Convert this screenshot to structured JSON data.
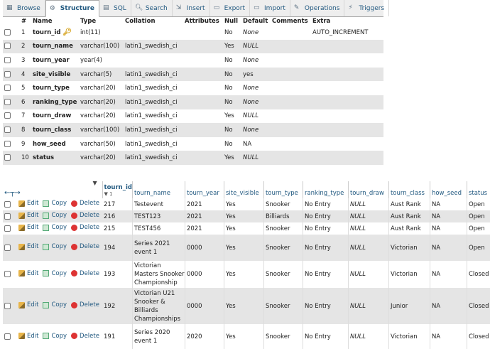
{
  "tabs": [
    {
      "label": "Browse",
      "icon": "browse-icon"
    },
    {
      "label": "Structure",
      "icon": "structure-icon",
      "active": true
    },
    {
      "label": "SQL",
      "icon": "sql-icon"
    },
    {
      "label": "Search",
      "icon": "search-icon"
    },
    {
      "label": "Insert",
      "icon": "insert-icon"
    },
    {
      "label": "Export",
      "icon": "export-icon"
    },
    {
      "label": "Import",
      "icon": "import-icon"
    },
    {
      "label": "Operations",
      "icon": "operations-icon"
    },
    {
      "label": "Triggers",
      "icon": "triggers-icon"
    }
  ],
  "structure": {
    "headers": {
      "num": "#",
      "name": "Name",
      "type": "Type",
      "collation": "Collation",
      "attributes": "Attributes",
      "null": "Null",
      "default": "Default",
      "comments": "Comments",
      "extra": "Extra"
    },
    "rows": [
      {
        "num": "1",
        "name": "tourn_id",
        "type": "int(11)",
        "collation": "",
        "attributes": "",
        "null": "No",
        "default": "None",
        "comments": "",
        "extra": "AUTO_INCREMENT"
      },
      {
        "num": "2",
        "name": "tourn_name",
        "type": "varchar(100)",
        "collation": "latin1_swedish_ci",
        "attributes": "",
        "null": "Yes",
        "default": "NULL",
        "comments": "",
        "extra": ""
      },
      {
        "num": "3",
        "name": "tourn_year",
        "type": "year(4)",
        "collation": "",
        "attributes": "",
        "null": "No",
        "default": "None",
        "comments": "",
        "extra": ""
      },
      {
        "num": "4",
        "name": "site_visible",
        "type": "varchar(5)",
        "collation": "latin1_swedish_ci",
        "attributes": "",
        "null": "No",
        "default": "yes",
        "comments": "",
        "extra": ""
      },
      {
        "num": "5",
        "name": "tourn_type",
        "type": "varchar(20)",
        "collation": "latin1_swedish_ci",
        "attributes": "",
        "null": "No",
        "default": "None",
        "comments": "",
        "extra": ""
      },
      {
        "num": "6",
        "name": "ranking_type",
        "type": "varchar(20)",
        "collation": "latin1_swedish_ci",
        "attributes": "",
        "null": "No",
        "default": "None",
        "comments": "",
        "extra": ""
      },
      {
        "num": "7",
        "name": "tourn_draw",
        "type": "varchar(20)",
        "collation": "latin1_swedish_ci",
        "attributes": "",
        "null": "Yes",
        "default": "NULL",
        "comments": "",
        "extra": ""
      },
      {
        "num": "8",
        "name": "tourn_class",
        "type": "varchar(100)",
        "collation": "latin1_swedish_ci",
        "attributes": "",
        "null": "No",
        "default": "None",
        "comments": "",
        "extra": ""
      },
      {
        "num": "9",
        "name": "how_seed",
        "type": "varchar(50)",
        "collation": "latin1_swedish_ci",
        "attributes": "",
        "null": "No",
        "default": "NA",
        "comments": "",
        "extra": ""
      },
      {
        "num": "10",
        "name": "status",
        "type": "varchar(20)",
        "collation": "latin1_swedish_ci",
        "attributes": "",
        "null": "Yes",
        "default": "NULL",
        "comments": "",
        "extra": ""
      }
    ]
  },
  "browse": {
    "sort_column": "tourn_id",
    "sort_indicator": "▼ 1",
    "headers": [
      "tourn_name",
      "tourn_year",
      "site_visible",
      "tourn_type",
      "ranking_type",
      "tourn_draw",
      "tourn_class",
      "how_seed",
      "status"
    ],
    "actions": {
      "edit": "Edit",
      "copy": "Copy",
      "delete": "Delete"
    },
    "rows": [
      {
        "id": "217",
        "tourn_name": "Testevent",
        "tourn_year": "2021",
        "site_visible": "Yes",
        "tourn_type": "Snooker",
        "ranking_type": "No Entry",
        "tourn_draw": "NULL",
        "tourn_class": "Aust Rank",
        "how_seed": "NA",
        "status": "Open",
        "h": 17
      },
      {
        "id": "216",
        "tourn_name": "TEST123",
        "tourn_year": "2021",
        "site_visible": "Yes",
        "tourn_type": "Billiards",
        "ranking_type": "No Entry",
        "tourn_draw": "NULL",
        "tourn_class": "Aust Rank",
        "how_seed": "NA",
        "status": "Open",
        "h": 17
      },
      {
        "id": "215",
        "tourn_name": "TEST456",
        "tourn_year": "2021",
        "site_visible": "Yes",
        "tourn_type": "Snooker",
        "ranking_type": "No Entry",
        "tourn_draw": "NULL",
        "tourn_class": "Aust Rank",
        "how_seed": "NA",
        "status": "Open",
        "h": 17
      },
      {
        "id": "194",
        "tourn_name": "Series 2021 event 1",
        "tourn_year": "0000",
        "site_visible": "Yes",
        "tourn_type": "Snooker",
        "ranking_type": "No Entry",
        "tourn_draw": "NULL",
        "tourn_class": "Victorian",
        "how_seed": "NA",
        "status": "Open",
        "h": 37
      },
      {
        "id": "193",
        "tourn_name": "Victorian Masters Snooker Championship",
        "tourn_year": "0000",
        "site_visible": "Yes",
        "tourn_type": "Snooker",
        "ranking_type": "No Entry",
        "tourn_draw": "NULL",
        "tourn_class": "Victorian",
        "how_seed": "NA",
        "status": "Closed",
        "h": 38
      },
      {
        "id": "192",
        "tourn_name": "Victorian U21 Snooker & Billiards Championships",
        "tourn_year": "0000",
        "site_visible": "Yes",
        "tourn_type": "Snooker",
        "ranking_type": "No Entry",
        "tourn_draw": "NULL",
        "tourn_class": "Junior",
        "how_seed": "NA",
        "status": "Closed",
        "h": 51
      },
      {
        "id": "191",
        "tourn_name": "Series 2020 event 1",
        "tourn_year": "2020",
        "site_visible": "Yes",
        "tourn_type": "Snooker",
        "ranking_type": "No Entry",
        "tourn_draw": "NULL",
        "tourn_class": "Victorian",
        "how_seed": "NA",
        "status": "Closed",
        "h": 36
      }
    ]
  },
  "colors": {
    "link": "#235a81",
    "row_alt": "#e5e5e5",
    "tab_bg": "#eeeeee"
  }
}
